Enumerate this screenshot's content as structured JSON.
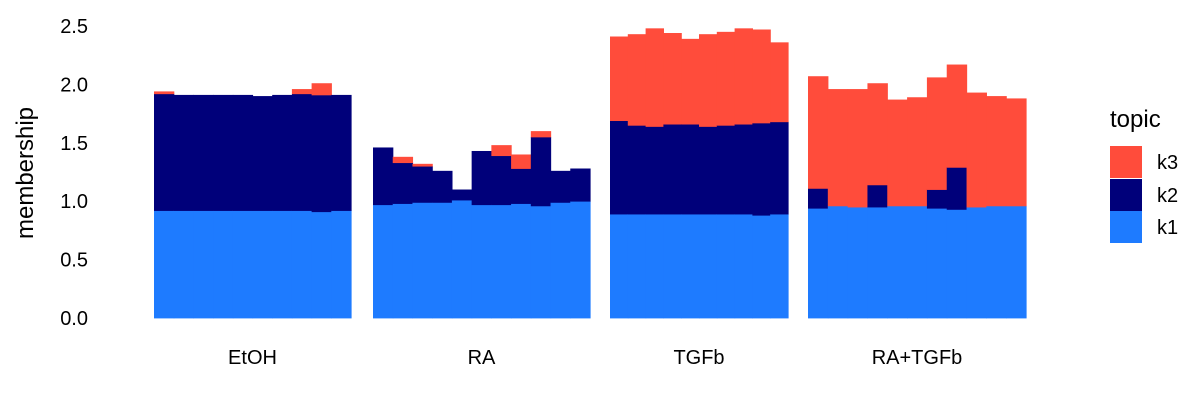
{
  "chart_data": {
    "type": "bar",
    "stacked": true,
    "ylabel": "membership",
    "ylim": [
      0,
      2.5
    ],
    "yticks": [
      "0.0",
      "0.5",
      "1.0",
      "1.5",
      "2.0",
      "2.5"
    ],
    "grid": false,
    "legend": {
      "title": "topic",
      "position": "right",
      "entries": [
        {
          "label": "k3",
          "color": "#FF4C3B"
        },
        {
          "label": "k2",
          "color": "#00007A"
        },
        {
          "label": "k1",
          "color": "#1E7BFF"
        }
      ]
    },
    "series_colors": {
      "k1": "#1E7BFF",
      "k2": "#00007A",
      "k3": "#FF4C3B"
    },
    "facets": [
      {
        "label": "EtOH",
        "k1": [
          0.92,
          0.92,
          0.92,
          0.92,
          0.92,
          0.92,
          0.92,
          0.92,
          0.91,
          0.92
        ],
        "k2": [
          1.0,
          0.99,
          0.99,
          0.99,
          0.99,
          0.98,
          0.99,
          1.0,
          1.0,
          0.99
        ],
        "k3": [
          0.02,
          0.0,
          0.0,
          0.0,
          0.0,
          0.0,
          0.0,
          0.04,
          0.1,
          0.0
        ]
      },
      {
        "label": "RA",
        "k1": [
          0.97,
          0.98,
          0.99,
          0.99,
          1.01,
          0.97,
          0.97,
          0.98,
          0.96,
          0.99,
          1.0
        ],
        "k2": [
          0.49,
          0.35,
          0.31,
          0.27,
          0.09,
          0.46,
          0.42,
          0.3,
          0.59,
          0.27,
          0.28
        ],
        "k3": [
          0.0,
          0.05,
          0.02,
          0.0,
          0.0,
          0.0,
          0.09,
          0.12,
          0.05,
          0.0,
          0.0
        ]
      },
      {
        "label": "TGFb",
        "k1": [
          0.89,
          0.89,
          0.89,
          0.89,
          0.89,
          0.89,
          0.89,
          0.89,
          0.88,
          0.89
        ],
        "k2": [
          0.8,
          0.76,
          0.75,
          0.77,
          0.77,
          0.75,
          0.76,
          0.77,
          0.79,
          0.79
        ],
        "k3": [
          0.72,
          0.78,
          0.84,
          0.78,
          0.73,
          0.79,
          0.8,
          0.82,
          0.8,
          0.68
        ]
      },
      {
        "label": "RA+TGFb",
        "k1": [
          0.94,
          0.96,
          0.95,
          0.95,
          0.96,
          0.96,
          0.94,
          0.93,
          0.95,
          0.96,
          0.96
        ],
        "k2": [
          0.17,
          0.0,
          0.0,
          0.19,
          0.0,
          0.0,
          0.16,
          0.36,
          0.0,
          0.0,
          0.0
        ],
        "k3": [
          0.96,
          1.0,
          1.01,
          0.87,
          0.91,
          0.93,
          0.96,
          0.88,
          0.98,
          0.94,
          0.92
        ]
      }
    ]
  }
}
